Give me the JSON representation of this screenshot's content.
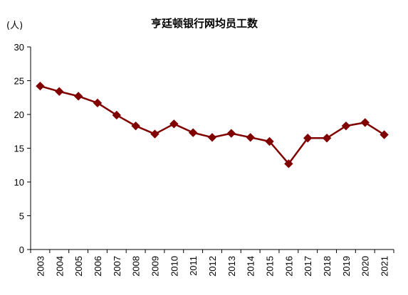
{
  "chart_data": {
    "type": "line",
    "title": "亨廷顿银行网均员工数",
    "unit_label": "(人)",
    "xlabel": "",
    "ylabel": "",
    "ylim": [
      0,
      30
    ],
    "yticks": [
      "0",
      "5",
      "10",
      "15",
      "20",
      "25",
      "30"
    ],
    "grid": false,
    "legend": "none",
    "x": [
      "2003",
      "2004",
      "2005",
      "2006",
      "2007",
      "2008",
      "2009",
      "2010",
      "2011",
      "2012",
      "2013",
      "2014",
      "2015",
      "2016",
      "2017",
      "2018",
      "2019",
      "2020",
      "2021"
    ],
    "series": [
      {
        "color": "#800000",
        "marker": "diamond",
        "values": [
          24.2,
          23.4,
          22.7,
          21.7,
          19.9,
          18.3,
          17.1,
          18.6,
          17.3,
          16.6,
          17.2,
          16.6,
          16.0,
          12.7,
          16.5,
          16.5,
          18.3,
          18.8,
          17.0
        ]
      }
    ]
  }
}
